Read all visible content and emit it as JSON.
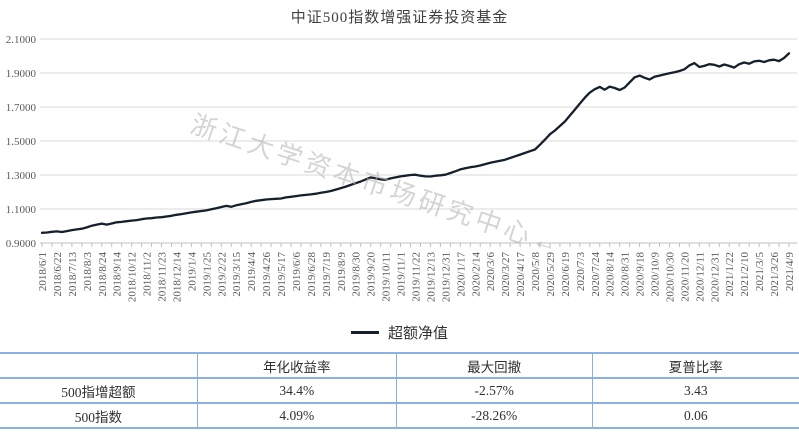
{
  "page": {
    "title": "中证500指数增强证券投资基金"
  },
  "watermark": {
    "text": "浙江大学资本市场研究中心←"
  },
  "legend": {
    "label": "超额净值"
  },
  "colors": {
    "line": "#16202c",
    "grid": "#d9d9d9",
    "axis": "#bfbfbf",
    "tick_text": "#595959",
    "table_border": "#8ab2e0",
    "watermark": "#b0b0b0"
  },
  "chart_data": {
    "type": "line",
    "title": "中证500指数增强证券投资基金",
    "legend_entries": [
      "超额净值"
    ],
    "legend_position": "bottom",
    "grid": "horizontal",
    "ylim": [
      0.9,
      2.1
    ],
    "y_tick_values": [
      0.9,
      1.1,
      1.3,
      1.5,
      1.7,
      1.9,
      2.1
    ],
    "y_tick_labels": [
      "0.9000",
      "1.1000",
      "1.3000",
      "1.5000",
      "1.7000",
      "1.9000",
      "2.1000"
    ],
    "label_every": 3,
    "x_labels": [
      "2018/6/1",
      "2018/6/22",
      "2018/7/13",
      "2018/8/3",
      "2018/8/24",
      "2018/9/14",
      "2018/10/12",
      "2018/11/2",
      "2018/11/23",
      "2018/12/14",
      "2019/1/4",
      "2019/1/25",
      "2019/2/22",
      "2019/3/15",
      "2019/4/4",
      "2019/4/26",
      "2019/5/17",
      "2019/6/6",
      "2019/6/28",
      "2019/7/19",
      "2019/8/9",
      "2019/8/30",
      "2019/9/20",
      "2019/10/11",
      "2019/11/1",
      "2019/11/22",
      "2019/12/13",
      "2019/12/31",
      "2020/1/17",
      "2020/2/14",
      "2020/3/6",
      "2020/3/27",
      "2020/4/17",
      "2020/5/8",
      "2020/5/29",
      "2020/6/19",
      "2020/7/3",
      "2020/7/24",
      "2020/8/14",
      "2020/8/31",
      "2020/9/18",
      "2020/10/9",
      "2020/10/30",
      "2020/11/20",
      "2020/12/11",
      "2020/12/31",
      "2021/1/22",
      "2021/2/10",
      "2021/3/5",
      "2021/3/26",
      "2021/4/9"
    ],
    "series": [
      {
        "name": "超额净值",
        "color": "#16202c",
        "values": [
          0.96,
          0.962,
          0.966,
          0.968,
          0.965,
          0.97,
          0.976,
          0.98,
          0.984,
          0.992,
          1.002,
          1.008,
          1.014,
          1.008,
          1.015,
          1.022,
          1.024,
          1.028,
          1.032,
          1.035,
          1.04,
          1.044,
          1.046,
          1.05,
          1.052,
          1.056,
          1.06,
          1.066,
          1.07,
          1.075,
          1.08,
          1.084,
          1.088,
          1.092,
          1.098,
          1.105,
          1.112,
          1.118,
          1.113,
          1.122,
          1.128,
          1.134,
          1.142,
          1.148,
          1.152,
          1.156,
          1.158,
          1.16,
          1.162,
          1.168,
          1.172,
          1.176,
          1.18,
          1.183,
          1.186,
          1.19,
          1.195,
          1.2,
          1.206,
          1.214,
          1.223,
          1.232,
          1.242,
          1.252,
          1.262,
          1.274,
          1.286,
          1.28,
          1.274,
          1.272,
          1.28,
          1.286,
          1.292,
          1.296,
          1.3,
          1.302,
          1.296,
          1.292,
          1.291,
          1.296,
          1.298,
          1.302,
          1.312,
          1.322,
          1.333,
          1.34,
          1.346,
          1.35,
          1.356,
          1.364,
          1.372,
          1.378,
          1.384,
          1.39,
          1.4,
          1.41,
          1.42,
          1.43,
          1.44,
          1.45,
          1.478,
          1.508,
          1.54,
          1.562,
          1.588,
          1.615,
          1.65,
          1.685,
          1.72,
          1.755,
          1.785,
          1.805,
          1.818,
          1.802,
          1.82,
          1.812,
          1.8,
          1.815,
          1.845,
          1.875,
          1.885,
          1.872,
          1.862,
          1.878,
          1.885,
          1.892,
          1.898,
          1.905,
          1.912,
          1.922,
          1.945,
          1.958,
          1.935,
          1.942,
          1.952,
          1.948,
          1.938,
          1.95,
          1.942,
          1.932,
          1.952,
          1.962,
          1.955,
          1.968,
          1.972,
          1.965,
          1.975,
          1.978,
          1.97,
          1.988,
          2.015
        ]
      }
    ]
  },
  "table": {
    "headers": [
      "",
      "年化收益率",
      "最大回撤",
      "夏普比率"
    ],
    "rows": [
      {
        "name": "500指增超额",
        "annualized_return": "34.4%",
        "max_drawdown": "-2.57%",
        "sharpe": "3.43"
      },
      {
        "name": "500指数",
        "annualized_return": "4.09%",
        "max_drawdown": "-28.26%",
        "sharpe": "0.06"
      }
    ]
  }
}
